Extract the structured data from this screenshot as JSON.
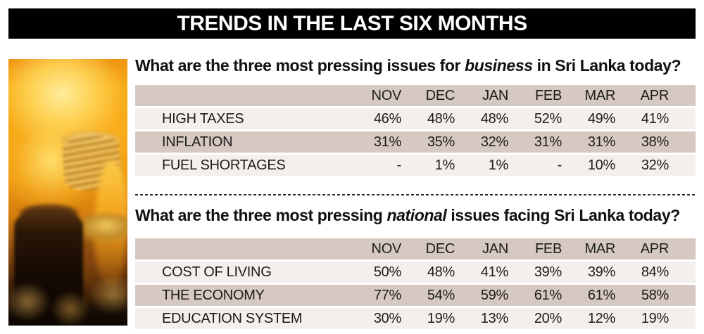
{
  "title_bar": {
    "title": "TRENDS IN THE LAST SIX MONTHS"
  },
  "photo": {
    "description": "blurred photo of coin stacks engulfed in flames"
  },
  "colors": {
    "title_bg": "#000000",
    "title_fg": "#ffffff",
    "row_beige": "#d6c9c1",
    "row_light": "#f4efeb",
    "text": "#1c1c1c",
    "flame_orange": "#f6a714",
    "flame_yellow": "#ffe394"
  },
  "questions": [
    {
      "prefix": "What are the three most pressing issues for ",
      "emphasis": "business",
      "suffix": " in Sri Lanka today?"
    },
    {
      "prefix": "What are the three most pressing ",
      "emphasis": "national",
      "suffix": " issues facing Sri Lanka today?"
    }
  ],
  "chart_data": [
    {
      "type": "table",
      "title": "What are the three most pressing issues for business in Sri Lanka today?",
      "columns": [
        "NOV",
        "DEC",
        "JAN",
        "FEB",
        "MAR",
        "APR"
      ],
      "rows": [
        [
          "HIGH TAXES",
          "46%",
          "48%",
          "48%",
          "52%",
          "49%",
          "41%"
        ],
        [
          "INFLATION",
          "31%",
          "35%",
          "32%",
          "31%",
          "31%",
          "38%"
        ],
        [
          "FUEL SHORTAGES",
          "-",
          "1%",
          "1%",
          "-",
          "10%",
          "32%"
        ]
      ]
    },
    {
      "type": "table",
      "title": "What are the three most pressing national issues facing Sri Lanka today?",
      "columns": [
        "NOV",
        "DEC",
        "JAN",
        "FEB",
        "MAR",
        "APR"
      ],
      "rows": [
        [
          "COST OF LIVING",
          "50%",
          "48%",
          "41%",
          "39%",
          "39%",
          "84%"
        ],
        [
          "THE ECONOMY",
          "77%",
          "54%",
          "59%",
          "61%",
          "61%",
          "58%"
        ],
        [
          "EDUCATION SYSTEM",
          "30%",
          "19%",
          "13%",
          "20%",
          "12%",
          "19%"
        ]
      ]
    }
  ]
}
